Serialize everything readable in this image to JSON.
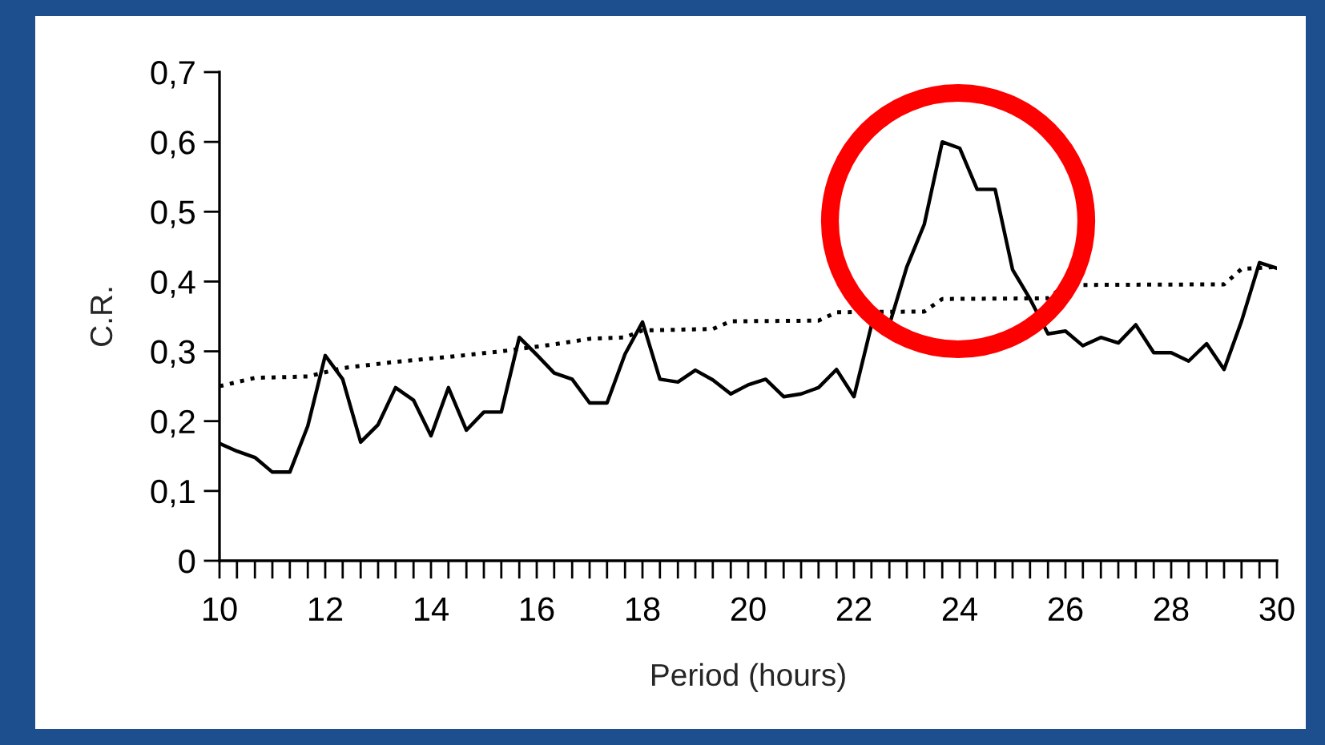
{
  "chart_data": {
    "type": "line",
    "xlabel": "Period (hours)",
    "ylabel": "C.R.",
    "xlim": [
      10,
      30
    ],
    "ylim": [
      0,
      0.7
    ],
    "xticks": [
      {
        "value": 10,
        "label": "10"
      },
      {
        "value": 10.33,
        "label": null
      },
      {
        "value": 10.67,
        "label": null
      },
      {
        "value": 11,
        "label": null
      },
      {
        "value": 11.33,
        "label": null
      },
      {
        "value": 11.67,
        "label": null
      },
      {
        "value": 12,
        "label": "12"
      },
      {
        "value": 12.33,
        "label": null
      },
      {
        "value": 12.67,
        "label": null
      },
      {
        "value": 13,
        "label": null
      },
      {
        "value": 13.33,
        "label": null
      },
      {
        "value": 13.67,
        "label": null
      },
      {
        "value": 14,
        "label": "14"
      },
      {
        "value": 14.33,
        "label": null
      },
      {
        "value": 14.67,
        "label": null
      },
      {
        "value": 15,
        "label": null
      },
      {
        "value": 15.33,
        "label": null
      },
      {
        "value": 15.67,
        "label": null
      },
      {
        "value": 16,
        "label": "16"
      },
      {
        "value": 16.33,
        "label": null
      },
      {
        "value": 16.67,
        "label": null
      },
      {
        "value": 17,
        "label": null
      },
      {
        "value": 17.33,
        "label": null
      },
      {
        "value": 17.67,
        "label": null
      },
      {
        "value": 18,
        "label": "18"
      },
      {
        "value": 18.33,
        "label": null
      },
      {
        "value": 18.67,
        "label": null
      },
      {
        "value": 19,
        "label": null
      },
      {
        "value": 19.33,
        "label": null
      },
      {
        "value": 19.67,
        "label": null
      },
      {
        "value": 20,
        "label": "20"
      },
      {
        "value": 20.33,
        "label": null
      },
      {
        "value": 20.67,
        "label": null
      },
      {
        "value": 21,
        "label": null
      },
      {
        "value": 21.33,
        "label": null
      },
      {
        "value": 21.67,
        "label": null
      },
      {
        "value": 22,
        "label": "22"
      },
      {
        "value": 22.33,
        "label": null
      },
      {
        "value": 22.67,
        "label": null
      },
      {
        "value": 23,
        "label": null
      },
      {
        "value": 23.33,
        "label": null
      },
      {
        "value": 23.67,
        "label": null
      },
      {
        "value": 24,
        "label": "24"
      },
      {
        "value": 24.33,
        "label": null
      },
      {
        "value": 24.67,
        "label": null
      },
      {
        "value": 25,
        "label": null
      },
      {
        "value": 25.33,
        "label": null
      },
      {
        "value": 25.67,
        "label": null
      },
      {
        "value": 26,
        "label": "26"
      },
      {
        "value": 26.33,
        "label": null
      },
      {
        "value": 26.67,
        "label": null
      },
      {
        "value": 27,
        "label": null
      },
      {
        "value": 27.33,
        "label": null
      },
      {
        "value": 27.67,
        "label": null
      },
      {
        "value": 28,
        "label": "28"
      },
      {
        "value": 28.33,
        "label": null
      },
      {
        "value": 28.67,
        "label": null
      },
      {
        "value": 29,
        "label": null
      },
      {
        "value": 29.33,
        "label": null
      },
      {
        "value": 29.67,
        "label": null
      },
      {
        "value": 30,
        "label": "30"
      }
    ],
    "yticks": [
      {
        "value": 0,
        "label": "0"
      },
      {
        "value": 0.1,
        "label": "0,1"
      },
      {
        "value": 0.2,
        "label": "0,2"
      },
      {
        "value": 0.3,
        "label": "0,3"
      },
      {
        "value": 0.4,
        "label": "0,4"
      },
      {
        "value": 0.5,
        "label": "0,5"
      },
      {
        "value": 0.6,
        "label": "0,6"
      },
      {
        "value": 0.7,
        "label": "0,7"
      }
    ],
    "grid": false,
    "legend": false,
    "marker": "none",
    "series": [
      {
        "color": "#000000",
        "line_style": "solid",
        "x": [
          10,
          10.33,
          10.67,
          11,
          11.33,
          11.67,
          12,
          12.33,
          12.67,
          13,
          13.33,
          13.67,
          14,
          14.33,
          14.67,
          15,
          15.33,
          15.67,
          16,
          16.33,
          16.67,
          17,
          17.33,
          17.67,
          18,
          18.33,
          18.67,
          19,
          19.33,
          19.67,
          20,
          20.33,
          20.67,
          21,
          21.33,
          21.67,
          22,
          22.33,
          22.67,
          23,
          23.33,
          23.67,
          24,
          24.33,
          24.67,
          25,
          25.33,
          25.67,
          26,
          26.33,
          26.67,
          27,
          27.33,
          27.67,
          28,
          28.33,
          28.67,
          29,
          29.33,
          29.67,
          30
        ],
        "values": [
          0.168,
          0.157,
          0.148,
          0.127,
          0.127,
          0.193,
          0.294,
          0.26,
          0.17,
          0.195,
          0.248,
          0.23,
          0.179,
          0.248,
          0.187,
          0.213,
          0.213,
          0.32,
          0.295,
          0.269,
          0.26,
          0.226,
          0.226,
          0.296,
          0.342,
          0.26,
          0.256,
          0.273,
          0.259,
          0.239,
          0.252,
          0.26,
          0.235,
          0.239,
          0.248,
          0.274,
          0.235,
          0.337,
          0.338,
          0.421,
          0.482,
          0.6,
          0.591,
          0.532,
          0.532,
          0.417,
          0.375,
          0.325,
          0.329,
          0.308,
          0.32,
          0.312,
          0.338,
          0.298,
          0.298,
          0.286,
          0.311,
          0.274,
          0.343,
          0.427,
          0.419
        ]
      },
      {
        "color": "#000000",
        "line_style": "dotted",
        "x": [
          10,
          10.67,
          11.67,
          12.33,
          13.33,
          14.33,
          15.33,
          16.33,
          17,
          17.67,
          18,
          19.33,
          19.67,
          21.33,
          21.67,
          23.33,
          23.67,
          25.67,
          26,
          29,
          29.33,
          30
        ],
        "values": [
          0.25,
          0.262,
          0.264,
          0.276,
          0.285,
          0.292,
          0.3,
          0.31,
          0.318,
          0.32,
          0.33,
          0.332,
          0.343,
          0.344,
          0.356,
          0.357,
          0.375,
          0.376,
          0.395,
          0.396,
          0.418,
          0.421
        ]
      }
    ]
  }
}
